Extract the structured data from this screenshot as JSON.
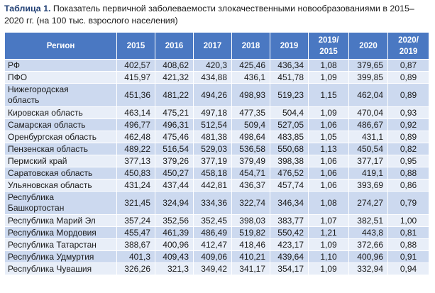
{
  "caption": {
    "bold": "Таблица 1.",
    "text": " Показатель первичной заболеваемости злокачественными новообразованиями в 2015–2020 гг. (на 100 тыс. взрослого населения)"
  },
  "headers": [
    "Регион",
    "2015",
    "2016",
    "2017",
    "2018",
    "2019",
    "2019/ 2015",
    "2020",
    "2020/ 2019"
  ],
  "rows": [
    [
      "РФ",
      "402,57",
      "408,62",
      "420,3",
      "425,46",
      "436,34",
      "1,08",
      "379,65",
      "0,87"
    ],
    [
      "ПФО",
      "415,97",
      "421,32",
      "434,88",
      "436,1",
      "451,78",
      "1,09",
      "399,85",
      "0,89"
    ],
    [
      "Нижегородская область",
      "451,36",
      "481,22",
      "494,26",
      "498,93",
      "519,23",
      "1,15",
      "462,04",
      "0,89"
    ],
    [
      "Кировская область",
      "463,14",
      "475,21",
      "497,18",
      "477,35",
      "504,4",
      "1,09",
      "470,04",
      "0,93"
    ],
    [
      "Самарская область",
      "496,77",
      "496,31",
      "512,54",
      "509,4",
      "527,05",
      "1,06",
      "486,67",
      "0,92"
    ],
    [
      "Оренбургская область",
      "462,48",
      "475,46",
      "481,38",
      "498,64",
      "483,85",
      "1,05",
      "431,1",
      "0,89"
    ],
    [
      "Пензенская область",
      "489,22",
      "516,54",
      "529,03",
      "536,58",
      "550,68",
      "1,13",
      "450,54",
      "0,82"
    ],
    [
      "Пермский край",
      "377,13",
      "379,26",
      "377,19",
      "379,49",
      "398,38",
      "1,06",
      "377,17",
      "0,95"
    ],
    [
      "Саратовская область",
      "450,83",
      "450,27",
      "458,18",
      "454,71",
      "476,52",
      "1,06",
      "419,1",
      "0,88"
    ],
    [
      "Ульяновская область",
      "431,24",
      "437,44",
      "442,81",
      "436,37",
      "457,74",
      "1,06",
      "393,69",
      "0,86"
    ],
    [
      "Республика Башкортостан",
      "321,45",
      "324,94",
      "334,36",
      "322,74",
      "346,34",
      "1,08",
      "274,27",
      "0,79"
    ],
    [
      "Республика Марий Эл",
      "357,24",
      "352,56",
      "352,45",
      "398,03",
      "383,77",
      "1,07",
      "382,51",
      "1,00"
    ],
    [
      "Республика Мордовия",
      "455,47",
      "461,39",
      "486,49",
      "519,82",
      "550,42",
      "1,21",
      "443,8",
      "0,81"
    ],
    [
      "Республика Татарстан",
      "388,67",
      "400,96",
      "412,47",
      "418,46",
      "423,17",
      "1,09",
      "372,66",
      "0,88"
    ],
    [
      "Республика Удмуртия",
      "401,3",
      "409,43",
      "409,06",
      "410,21",
      "439,64",
      "1,10",
      "400,96",
      "0,91"
    ],
    [
      "Республика Чувашия",
      "326,26",
      "321,3",
      "349,42",
      "341,17",
      "354,17",
      "1,09",
      "332,94",
      "0,94"
    ]
  ],
  "colors": {
    "header_bg": "#4a78c2",
    "row_odd": "#ccd9ef",
    "row_even": "#e8eef8",
    "caption_bold": "#1f3e73"
  }
}
